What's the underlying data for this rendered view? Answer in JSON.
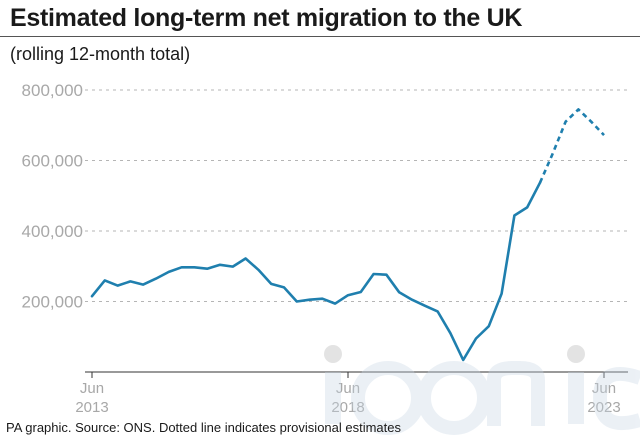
{
  "chart_data": {
    "type": "line",
    "title": "Estimated long-term net migration to the UK",
    "subtitle": "(rolling 12-month total)",
    "source": "PA graphic. Source: ONS. Dotted line indicates provisional estimates",
    "y_ticks": [
      "800,000",
      "600,000",
      "400,000",
      "200,000"
    ],
    "y_tick_values": [
      800000,
      600000,
      400000,
      200000
    ],
    "ylim": [
      0,
      800000
    ],
    "x_ticks": [
      {
        "month": "Jun",
        "year": "2013",
        "x": 2013.5
      },
      {
        "month": "Jun",
        "year": "2018",
        "x": 2018.5
      },
      {
        "month": "Jun",
        "year": "2023",
        "x": 2023.5
      }
    ],
    "xlim": [
      2013.5,
      2023.5
    ],
    "grid": true,
    "color": "#1f7fae",
    "series": [
      {
        "style": "solid",
        "points": [
          [
            2013.5,
            215000
          ],
          [
            2013.75,
            260000
          ],
          [
            2014.0,
            245000
          ],
          [
            2014.25,
            257000
          ],
          [
            2014.5,
            248000
          ],
          [
            2014.75,
            265000
          ],
          [
            2015.0,
            284000
          ],
          [
            2015.25,
            297000
          ],
          [
            2015.5,
            297000
          ],
          [
            2015.75,
            293000
          ],
          [
            2016.0,
            304000
          ],
          [
            2016.25,
            299000
          ],
          [
            2016.5,
            322000
          ],
          [
            2016.75,
            290000
          ],
          [
            2017.0,
            250000
          ],
          [
            2017.25,
            240000
          ],
          [
            2017.5,
            200000
          ],
          [
            2017.75,
            205000
          ],
          [
            2018.0,
            208000
          ],
          [
            2018.25,
            194000
          ],
          [
            2018.5,
            218000
          ],
          [
            2018.75,
            227000
          ],
          [
            2019.0,
            278000
          ],
          [
            2019.25,
            276000
          ],
          [
            2019.5,
            226000
          ],
          [
            2019.75,
            205000
          ],
          [
            2020.0,
            188000
          ],
          [
            2020.25,
            172000
          ],
          [
            2020.5,
            110000
          ],
          [
            2020.75,
            34000
          ],
          [
            2021.0,
            95000
          ],
          [
            2021.25,
            130000
          ],
          [
            2021.5,
            222000
          ],
          [
            2021.75,
            444000
          ],
          [
            2022.0,
            467000
          ],
          [
            2022.25,
            537000
          ]
        ]
      },
      {
        "style": "dotted",
        "points": [
          [
            2022.25,
            537000
          ],
          [
            2022.5,
            620000
          ],
          [
            2022.75,
            710000
          ],
          [
            2023.0,
            745000
          ],
          [
            2023.25,
            710000
          ],
          [
            2023.5,
            672000
          ]
        ]
      }
    ]
  }
}
